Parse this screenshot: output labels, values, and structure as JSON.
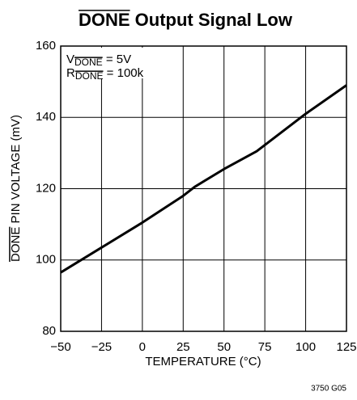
{
  "chart_data": {
    "type": "line",
    "title": "DONE Output Signal Low",
    "x_label": "TEMPERATURE (°C)",
    "y_label": "DONE PIN VOLTAGE (mV)",
    "annotations": [
      {
        "symbol": "V",
        "subscript": "DONE",
        "rest": " = 5V"
      },
      {
        "symbol": "R",
        "subscript": "DONE",
        "rest": " = 100k"
      }
    ],
    "footnote": "3750 G05",
    "x": [
      -50,
      -25,
      0,
      25,
      32,
      50,
      70,
      100,
      125
    ],
    "series": [
      {
        "name": "VDONE",
        "color": "#000000",
        "values": [
          96.5,
          103.5,
          110.5,
          118,
          120.5,
          125.5,
          130.5,
          141,
          149
        ]
      }
    ],
    "xlim": [
      -50,
      125
    ],
    "xticks": [
      {
        "value": -50,
        "label": "−50"
      },
      {
        "value": -25,
        "label": "−25"
      },
      0,
      25,
      50,
      75,
      100,
      125
    ],
    "ylim": [
      80,
      160
    ],
    "yticks": [
      80,
      100,
      120,
      140,
      160
    ],
    "grid": true
  }
}
